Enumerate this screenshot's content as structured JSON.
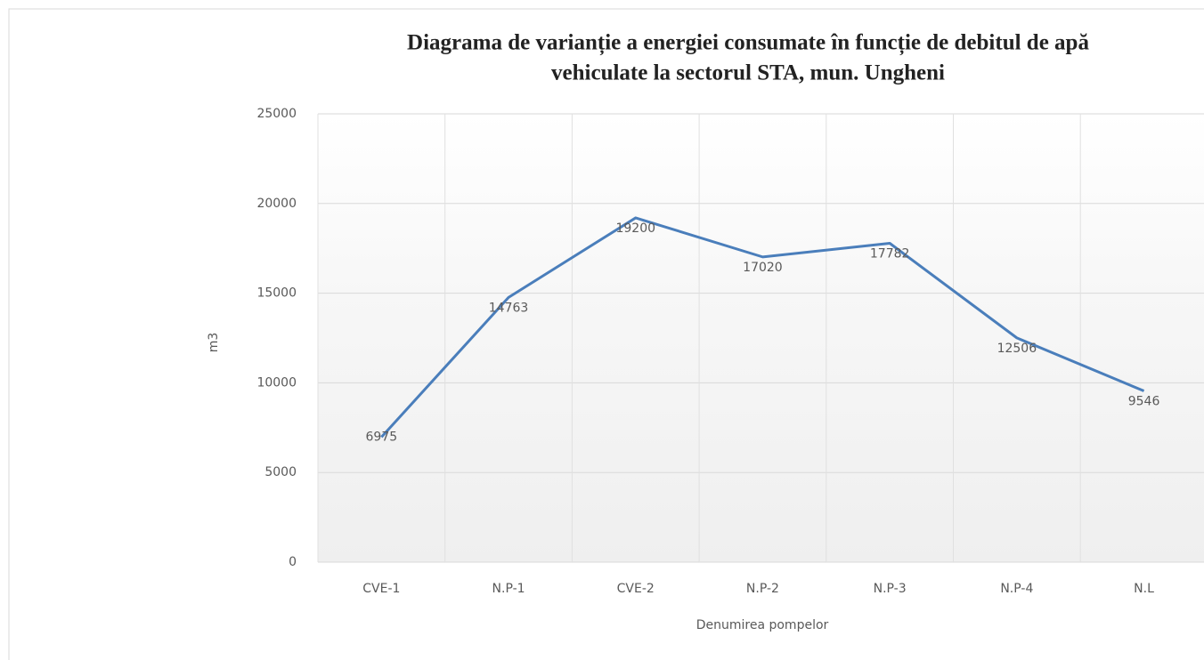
{
  "chart_data": {
    "type": "line",
    "title": [
      "Diagrama de varianție a energiei consumate în funcție de debitul de apă",
      "vehiculate la sectorul STA, mun. Ungheni"
    ],
    "categories": [
      "CVE-1",
      "N.P-1",
      "CVE-2",
      "N.P-2",
      "N.P-3",
      "N.P-4",
      "N.L"
    ],
    "series": [
      {
        "color": "#4a7ebb",
        "values": [
          6975,
          14763,
          19200,
          17020,
          17782,
          12506,
          9546
        ]
      }
    ],
    "ylim": [
      0,
      25000
    ],
    "yticks": [
      0,
      5000,
      10000,
      15000,
      20000,
      25000
    ],
    "y_label": "m3",
    "x_label": "Denumirea pompelor",
    "grid": true
  }
}
